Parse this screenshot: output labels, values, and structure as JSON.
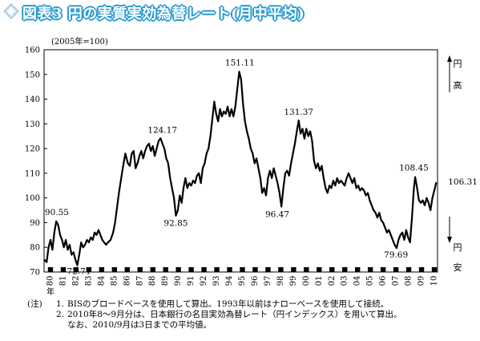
{
  "title": "図表3 円の実質実効為替レート(月中平均)",
  "colors": {
    "title_fill": "#ffffff",
    "title_outline": "#2a9bd0",
    "line": "#000000"
  },
  "notes": {
    "prefix": "(注)",
    "items": [
      {
        "num": "1.",
        "text": "BISのブロードベースを使用して算出。1993年以前はナローベースを使用して接続。"
      },
      {
        "num": "2.",
        "text": "2010年8～9月分は、日本銀行の名目実効為替レート（円インデックス）を用いて算出。"
      }
    ],
    "continuation": "なお、2010/9月は3日までの平均値。"
  },
  "chart_data": {
    "type": "line",
    "title": "",
    "unit_label": "(2005年=100)",
    "xlabel": "年",
    "ylabel": "",
    "ylim": [
      70,
      160
    ],
    "xlim": [
      1980.0,
      2010.75
    ],
    "yticks": [
      70,
      80,
      90,
      100,
      110,
      120,
      130,
      140,
      150,
      160
    ],
    "xtick_labels": [
      "80",
      "81",
      "82",
      "83",
      "84",
      "85",
      "86",
      "87",
      "88",
      "89",
      "90",
      "91",
      "92",
      "93",
      "94",
      "95",
      "96",
      "97",
      "98",
      "99",
      "00",
      "01",
      "02",
      "03",
      "04",
      "05",
      "06",
      "07",
      "08",
      "09",
      "10"
    ],
    "right_labels": {
      "top": [
        "円",
        "高"
      ],
      "bottom": [
        "円",
        "安"
      ]
    },
    "annotations": [
      {
        "x": 1981.0,
        "y": 90.55,
        "label": "90.55"
      },
      {
        "x": 1982.6,
        "y": 72.71,
        "label": "72.71"
      },
      {
        "x": 1989.25,
        "y": 124.17,
        "label": "124.17"
      },
      {
        "x": 1990.3,
        "y": 92.85,
        "label": "92.85"
      },
      {
        "x": 1995.3,
        "y": 151.11,
        "label": "151.11"
      },
      {
        "x": 1998.6,
        "y": 96.47,
        "label": "96.47"
      },
      {
        "x": 1999.9,
        "y": 131.37,
        "label": "131.37"
      },
      {
        "x": 2007.5,
        "y": 79.69,
        "label": "79.69"
      },
      {
        "x": 2008.9,
        "y": 108.45,
        "label": "108.45"
      },
      {
        "x": 2010.7,
        "y": 106.31,
        "label": "106.31"
      }
    ],
    "series": [
      {
        "values": [
          [
            1980.0,
            75
          ],
          [
            1980.2,
            74
          ],
          [
            1980.35,
            80
          ],
          [
            1980.5,
            83
          ],
          [
            1980.65,
            79
          ],
          [
            1980.8,
            86
          ],
          [
            1980.95,
            90.55
          ],
          [
            1981.1,
            89
          ],
          [
            1981.25,
            85
          ],
          [
            1981.4,
            83
          ],
          [
            1981.55,
            80
          ],
          [
            1981.7,
            83
          ],
          [
            1981.85,
            79
          ],
          [
            1982.0,
            81
          ],
          [
            1982.15,
            77
          ],
          [
            1982.3,
            78
          ],
          [
            1982.45,
            75
          ],
          [
            1982.6,
            72.71
          ],
          [
            1982.75,
            77
          ],
          [
            1982.9,
            82
          ],
          [
            1983.05,
            80
          ],
          [
            1983.2,
            81
          ],
          [
            1983.35,
            83
          ],
          [
            1983.5,
            82
          ],
          [
            1983.65,
            84
          ],
          [
            1983.8,
            83
          ],
          [
            1983.95,
            86
          ],
          [
            1984.1,
            85
          ],
          [
            1984.25,
            87
          ],
          [
            1984.4,
            85
          ],
          [
            1984.55,
            83
          ],
          [
            1984.7,
            82
          ],
          [
            1984.85,
            81
          ],
          [
            1985.0,
            82
          ],
          [
            1985.2,
            83
          ],
          [
            1985.4,
            86
          ],
          [
            1985.55,
            90
          ],
          [
            1985.7,
            96
          ],
          [
            1985.85,
            102
          ],
          [
            1986.0,
            107
          ],
          [
            1986.15,
            112
          ],
          [
            1986.35,
            118
          ],
          [
            1986.55,
            114
          ],
          [
            1986.7,
            113
          ],
          [
            1986.85,
            118
          ],
          [
            1987.0,
            119
          ],
          [
            1987.15,
            112
          ],
          [
            1987.3,
            114
          ],
          [
            1987.45,
            117
          ],
          [
            1987.6,
            119
          ],
          [
            1987.75,
            116
          ],
          [
            1987.9,
            119
          ],
          [
            1988.05,
            121
          ],
          [
            1988.2,
            122
          ],
          [
            1988.35,
            119
          ],
          [
            1988.5,
            121
          ],
          [
            1988.65,
            117
          ],
          [
            1988.8,
            120
          ],
          [
            1988.95,
            123
          ],
          [
            1989.1,
            124.17
          ],
          [
            1989.25,
            122
          ],
          [
            1989.4,
            120
          ],
          [
            1989.55,
            116
          ],
          [
            1989.7,
            114
          ],
          [
            1989.85,
            108
          ],
          [
            1990.0,
            104
          ],
          [
            1990.15,
            100
          ],
          [
            1990.3,
            92.85
          ],
          [
            1990.45,
            95
          ],
          [
            1990.6,
            101
          ],
          [
            1990.75,
            98
          ],
          [
            1990.9,
            104
          ],
          [
            1991.05,
            108
          ],
          [
            1991.2,
            104
          ],
          [
            1991.35,
            106
          ],
          [
            1991.5,
            105
          ],
          [
            1991.65,
            107
          ],
          [
            1991.8,
            106
          ],
          [
            1991.95,
            109
          ],
          [
            1992.1,
            110
          ],
          [
            1992.25,
            106
          ],
          [
            1992.4,
            112
          ],
          [
            1992.55,
            114
          ],
          [
            1992.7,
            118
          ],
          [
            1992.85,
            120
          ],
          [
            1993.0,
            125
          ],
          [
            1993.15,
            132
          ],
          [
            1993.3,
            139
          ],
          [
            1993.45,
            134
          ],
          [
            1993.6,
            131
          ],
          [
            1993.75,
            136
          ],
          [
            1993.9,
            133
          ],
          [
            1994.05,
            135
          ],
          [
            1994.2,
            134
          ],
          [
            1994.35,
            137
          ],
          [
            1994.5,
            133
          ],
          [
            1994.65,
            136
          ],
          [
            1994.8,
            133
          ],
          [
            1994.95,
            137
          ],
          [
            1995.1,
            144
          ],
          [
            1995.25,
            151.11
          ],
          [
            1995.4,
            148
          ],
          [
            1995.55,
            138
          ],
          [
            1995.7,
            131
          ],
          [
            1995.85,
            127
          ],
          [
            1996.0,
            124
          ],
          [
            1996.15,
            120
          ],
          [
            1996.3,
            118
          ],
          [
            1996.45,
            114
          ],
          [
            1996.6,
            116
          ],
          [
            1996.75,
            112
          ],
          [
            1996.9,
            108
          ],
          [
            1997.05,
            102
          ],
          [
            1997.2,
            104
          ],
          [
            1997.35,
            101
          ],
          [
            1997.5,
            108
          ],
          [
            1997.65,
            111
          ],
          [
            1997.8,
            108
          ],
          [
            1997.95,
            112
          ],
          [
            1998.1,
            109
          ],
          [
            1998.25,
            106
          ],
          [
            1998.4,
            102
          ],
          [
            1998.55,
            96.47
          ],
          [
            1998.7,
            104
          ],
          [
            1998.85,
            110
          ],
          [
            1999.0,
            111
          ],
          [
            1999.15,
            109
          ],
          [
            1999.3,
            114
          ],
          [
            1999.45,
            118
          ],
          [
            1999.6,
            122
          ],
          [
            1999.75,
            127
          ],
          [
            1999.9,
            131.37
          ],
          [
            2000.05,
            126
          ],
          [
            2000.2,
            128
          ],
          [
            2000.35,
            124
          ],
          [
            2000.5,
            128
          ],
          [
            2000.65,
            125
          ],
          [
            2000.8,
            127
          ],
          [
            2000.95,
            123
          ],
          [
            2001.1,
            115
          ],
          [
            2001.25,
            112
          ],
          [
            2001.4,
            114
          ],
          [
            2001.55,
            111
          ],
          [
            2001.7,
            113
          ],
          [
            2001.85,
            108
          ],
          [
            2002.0,
            104
          ],
          [
            2002.15,
            102
          ],
          [
            2002.3,
            105
          ],
          [
            2002.45,
            104
          ],
          [
            2002.6,
            107
          ],
          [
            2002.75,
            105
          ],
          [
            2002.9,
            108
          ],
          [
            2003.05,
            106
          ],
          [
            2003.2,
            107
          ],
          [
            2003.35,
            106
          ],
          [
            2003.5,
            105
          ],
          [
            2003.65,
            108
          ],
          [
            2003.8,
            110
          ],
          [
            2003.95,
            108
          ],
          [
            2004.1,
            106
          ],
          [
            2004.25,
            108
          ],
          [
            2004.4,
            104
          ],
          [
            2004.55,
            105
          ],
          [
            2004.7,
            103
          ],
          [
            2004.85,
            104
          ],
          [
            2005.0,
            103
          ],
          [
            2005.15,
            101
          ],
          [
            2005.3,
            102
          ],
          [
            2005.45,
            99
          ],
          [
            2005.6,
            97
          ],
          [
            2005.75,
            95
          ],
          [
            2005.9,
            94
          ],
          [
            2006.05,
            92
          ],
          [
            2006.2,
            94
          ],
          [
            2006.35,
            91
          ],
          [
            2006.5,
            90
          ],
          [
            2006.65,
            88
          ],
          [
            2006.8,
            86
          ],
          [
            2006.95,
            87
          ],
          [
            2007.1,
            85
          ],
          [
            2007.25,
            83
          ],
          [
            2007.4,
            81
          ],
          [
            2007.55,
            79.69
          ],
          [
            2007.7,
            83
          ],
          [
            2007.85,
            85
          ],
          [
            2008.0,
            86
          ],
          [
            2008.15,
            83
          ],
          [
            2008.3,
            87
          ],
          [
            2008.45,
            84
          ],
          [
            2008.6,
            82
          ],
          [
            2008.75,
            92
          ],
          [
            2008.9,
            104
          ],
          [
            2009.0,
            108.45
          ],
          [
            2009.15,
            104
          ],
          [
            2009.3,
            99
          ],
          [
            2009.45,
            98
          ],
          [
            2009.6,
            99
          ],
          [
            2009.75,
            97
          ],
          [
            2009.9,
            100
          ],
          [
            2010.05,
            98
          ],
          [
            2010.2,
            95
          ],
          [
            2010.35,
            100
          ],
          [
            2010.5,
            103
          ],
          [
            2010.65,
            106.31
          ]
        ]
      }
    ]
  }
}
